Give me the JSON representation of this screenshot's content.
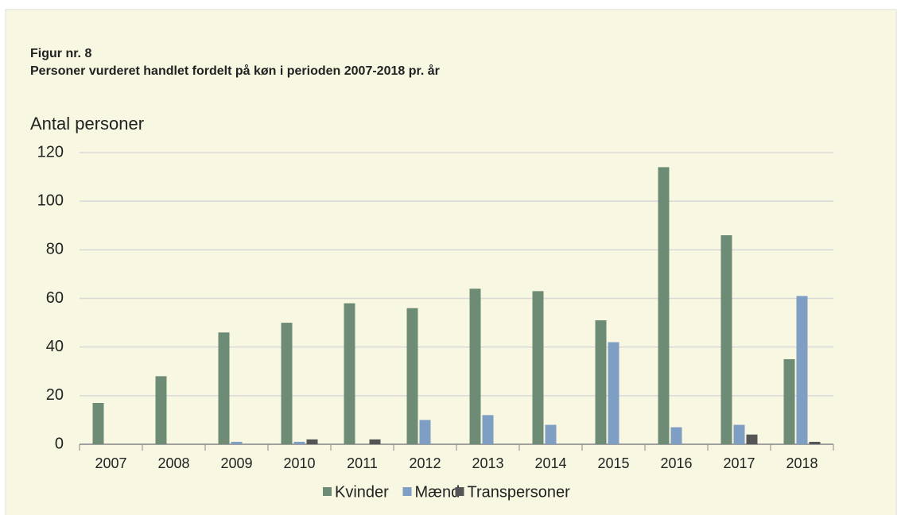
{
  "chart_data": {
    "type": "bar",
    "title": "Figur nr. 8",
    "subtitle": "Personer vurderet handlet fordelt på køn i perioden 2007-2018 pr. år",
    "ylabel": "Antal personer",
    "categories": [
      "2007",
      "2008",
      "2009",
      "2010",
      "2011",
      "2012",
      "2013",
      "2014",
      "2015",
      "2016",
      "2017",
      "2018"
    ],
    "series": [
      {
        "name": "Kvinder",
        "color": "#6e8c75",
        "values": [
          17,
          28,
          46,
          50,
          58,
          56,
          64,
          63,
          51,
          114,
          86,
          35
        ]
      },
      {
        "name": "Mænd",
        "color": "#7f9ec4",
        "values": [
          0,
          0,
          1,
          1,
          0,
          10,
          12,
          8,
          42,
          7,
          8,
          61
        ]
      },
      {
        "name": "Transpersoner",
        "color": "#555555",
        "values": [
          0,
          0,
          0,
          2,
          2,
          0,
          0,
          0,
          0,
          0,
          4,
          1
        ]
      }
    ],
    "ylim": [
      0,
      120
    ],
    "yticks": [
      0,
      20,
      40,
      60,
      80,
      100,
      120
    ],
    "grid": true,
    "legend": "bottom"
  }
}
